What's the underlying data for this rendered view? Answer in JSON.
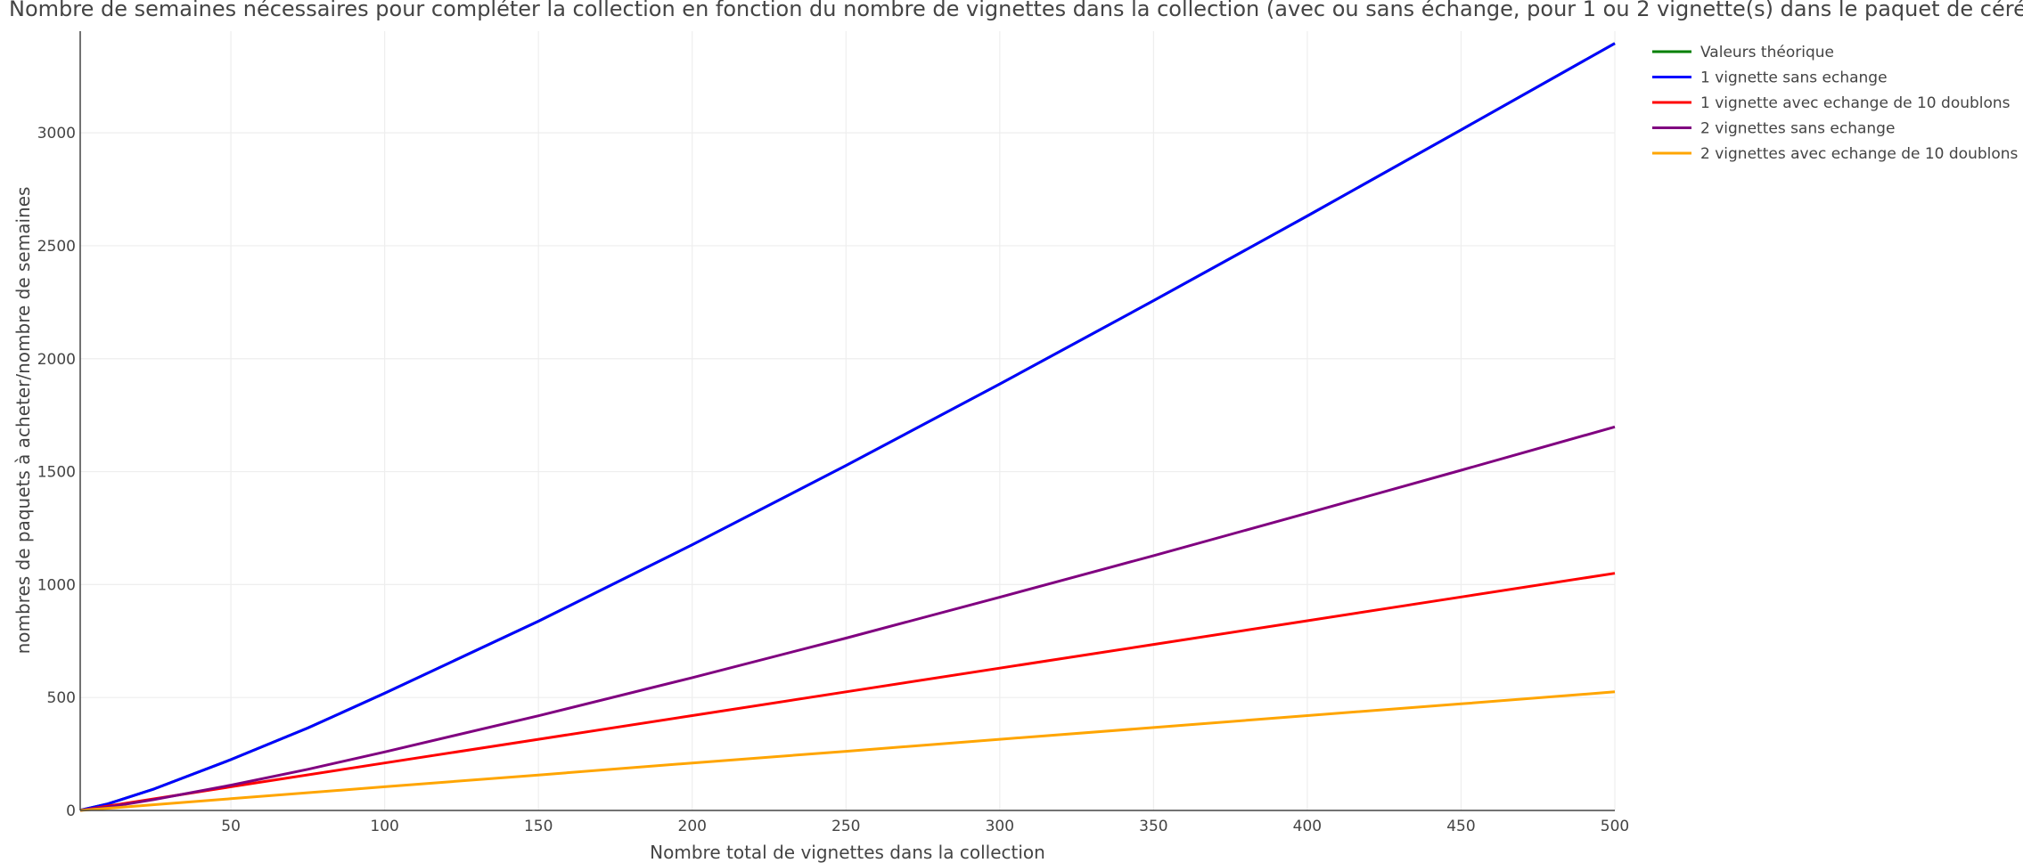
{
  "chart_data": {
    "type": "line",
    "title": "Nombre de semaines nécessaires pour compléter la collection en fonction du nombre de vignettes dans la collection (avec ou sans échange, pour 1 ou 2 vignette(s) dans le paquet de céréale)",
    "xlabel": "Nombre total de vignettes dans la collection",
    "ylabel": "nombres de paquets à acheter/nombre de semaines",
    "xlim": [
      1,
      500
    ],
    "ylim": [
      0,
      3450
    ],
    "x_ticks": [
      50,
      100,
      150,
      200,
      250,
      300,
      350,
      400,
      450,
      500
    ],
    "y_ticks": [
      0,
      500,
      1000,
      1500,
      2000,
      2500,
      3000
    ],
    "grid": true,
    "legend_position": "top-right",
    "series": [
      {
        "name": "Valeurs théorique",
        "color": "#008000",
        "x": [
          1,
          10,
          25,
          50,
          75,
          100,
          150,
          200,
          250,
          300,
          350,
          400,
          450,
          500
        ],
        "y": [
          1,
          29,
          95,
          225,
          365,
          519,
          838,
          1176,
          1527,
          1888,
          2257,
          2632,
          3013,
          3396
        ]
      },
      {
        "name": "1 vignette sans echange",
        "color": "#0000ff",
        "x": [
          1,
          10,
          25,
          50,
          75,
          100,
          150,
          200,
          250,
          300,
          350,
          400,
          450,
          500
        ],
        "y": [
          1,
          29,
          95,
          225,
          365,
          519,
          838,
          1176,
          1527,
          1888,
          2257,
          2632,
          3013,
          3396
        ]
      },
      {
        "name": "1 vignette avec echange de 10 doublons",
        "color": "#ff0000",
        "x": [
          1,
          50,
          100,
          150,
          200,
          250,
          300,
          350,
          400,
          450,
          500
        ],
        "y": [
          0,
          105,
          210,
          315,
          420,
          525,
          630,
          735,
          840,
          945,
          1050
        ]
      },
      {
        "name": "2 vignettes sans echange",
        "color": "#800080",
        "x": [
          1,
          10,
          25,
          50,
          75,
          100,
          150,
          200,
          250,
          300,
          350,
          400,
          450,
          500
        ],
        "y": [
          1,
          15,
          48,
          112,
          182,
          259,
          419,
          588,
          763,
          944,
          1128,
          1316,
          1506,
          1698
        ]
      },
      {
        "name": "2 vignettes avec echange de 10 doublons",
        "color": "#ffa500",
        "x": [
          1,
          50,
          100,
          150,
          200,
          250,
          300,
          350,
          400,
          450,
          500
        ],
        "y": [
          0,
          52,
          105,
          157,
          210,
          262,
          315,
          367,
          420,
          472,
          525
        ]
      }
    ]
  }
}
